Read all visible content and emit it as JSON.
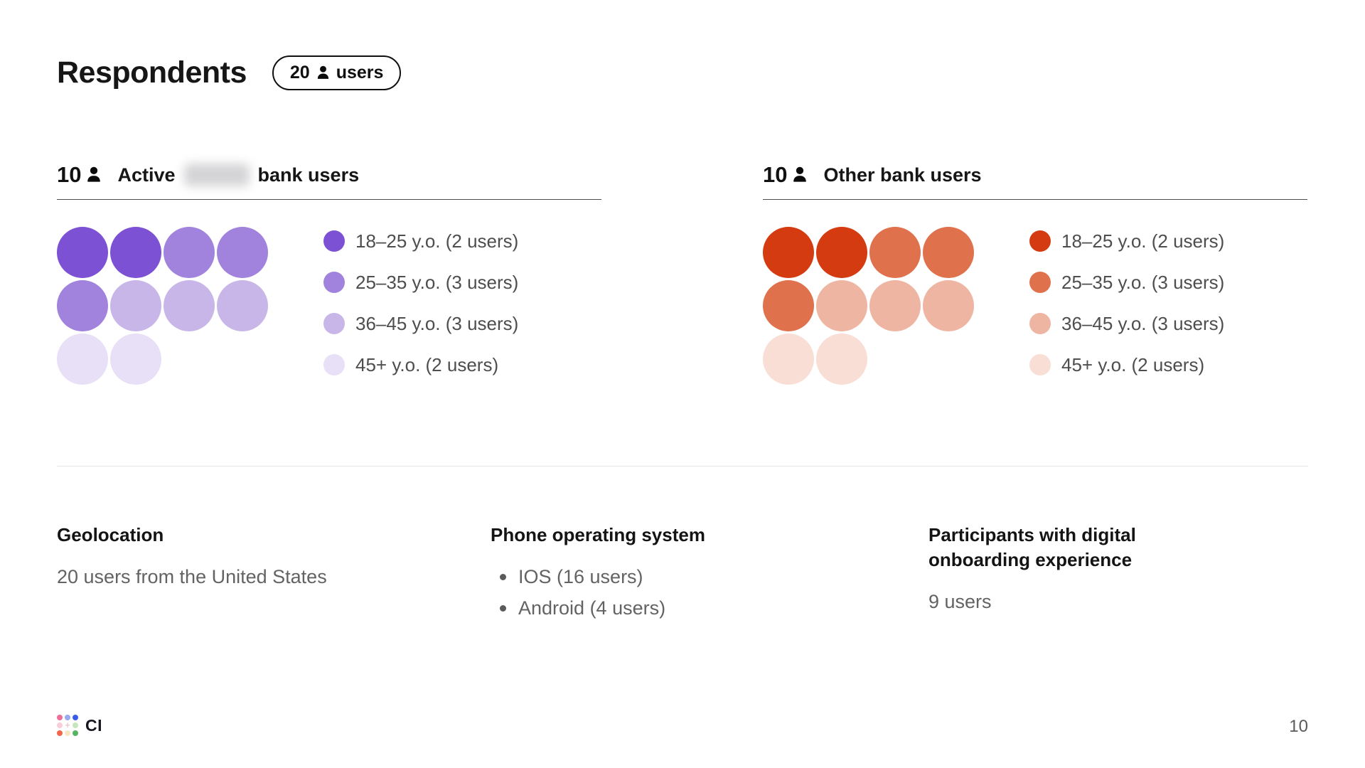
{
  "title": "Respondents",
  "badge": {
    "count": "20",
    "label": "users"
  },
  "groups": [
    {
      "count": "10",
      "title_start": "Active",
      "title_end": "bank users",
      "palette": [
        "#7d51d3",
        "#a183dd",
        "#c9b6e9",
        "#e8e0f6"
      ],
      "dots": [
        0,
        0,
        1,
        1,
        1,
        2,
        2,
        2,
        3,
        3
      ],
      "legend": [
        {
          "color_index": 0,
          "label": "18–25 y.o. (2 users)"
        },
        {
          "color_index": 1,
          "label": "25–35 y.o. (3 users)"
        },
        {
          "color_index": 2,
          "label": "36–45 y.o. (3 users)"
        },
        {
          "color_index": 3,
          "label": "45+ y.o. (2 users)"
        }
      ]
    },
    {
      "count": "10",
      "title_start": "Other bank users",
      "palette": [
        "#d43b10",
        "#e0714d",
        "#efb5a3",
        "#f9ded6"
      ],
      "dots": [
        0,
        0,
        1,
        1,
        1,
        2,
        2,
        2,
        3,
        3
      ],
      "legend": [
        {
          "color_index": 0,
          "label": "18–25 y.o. (2 users)"
        },
        {
          "color_index": 1,
          "label": "25–35 y.o. (3 users)"
        },
        {
          "color_index": 2,
          "label": "36–45 y.o. (3 users)"
        },
        {
          "color_index": 3,
          "label": "45+ y.o. (2 users)"
        }
      ]
    }
  ],
  "bottom": {
    "geolocation": {
      "heading": "Geolocation",
      "text": "20 users from the United States"
    },
    "phone_os": {
      "heading": "Phone operating system",
      "items": [
        "IOS (16 users)",
        "Android (4 users)"
      ]
    },
    "onboarding": {
      "heading": "Participants with digital onboarding experience",
      "text": "9 users"
    }
  },
  "footer": {
    "logo_text": "CI",
    "logo_dot_colors": [
      "#ee6e98",
      "#9aaaf0",
      "#3b5ce6",
      "#f6cdd8",
      "+",
      "#c6e5bd",
      "#f2674a",
      "#f8e6c0",
      "#57b360"
    ],
    "logo_plus_color": "#ecccd4",
    "page_number": "10"
  },
  "chart_data": [
    {
      "type": "bar",
      "subtype": "unit_dot_grid",
      "title": "Active [redacted] bank users",
      "total_users": 10,
      "categories": [
        "18–25 y.o.",
        "25–35 y.o.",
        "36–45 y.o.",
        "45+ y.o."
      ],
      "values": [
        2,
        3,
        3,
        2
      ],
      "colors": [
        "#7d51d3",
        "#a183dd",
        "#c9b6e9",
        "#e8e0f6"
      ],
      "legend_position": "right"
    },
    {
      "type": "bar",
      "subtype": "unit_dot_grid",
      "title": "Other bank users",
      "total_users": 10,
      "categories": [
        "18–25 y.o.",
        "25–35 y.o.",
        "36–45 y.o.",
        "45+ y.o."
      ],
      "values": [
        2,
        3,
        3,
        2
      ],
      "colors": [
        "#d43b10",
        "#e0714d",
        "#efb5a3",
        "#f9ded6"
      ],
      "legend_position": "right"
    }
  ]
}
